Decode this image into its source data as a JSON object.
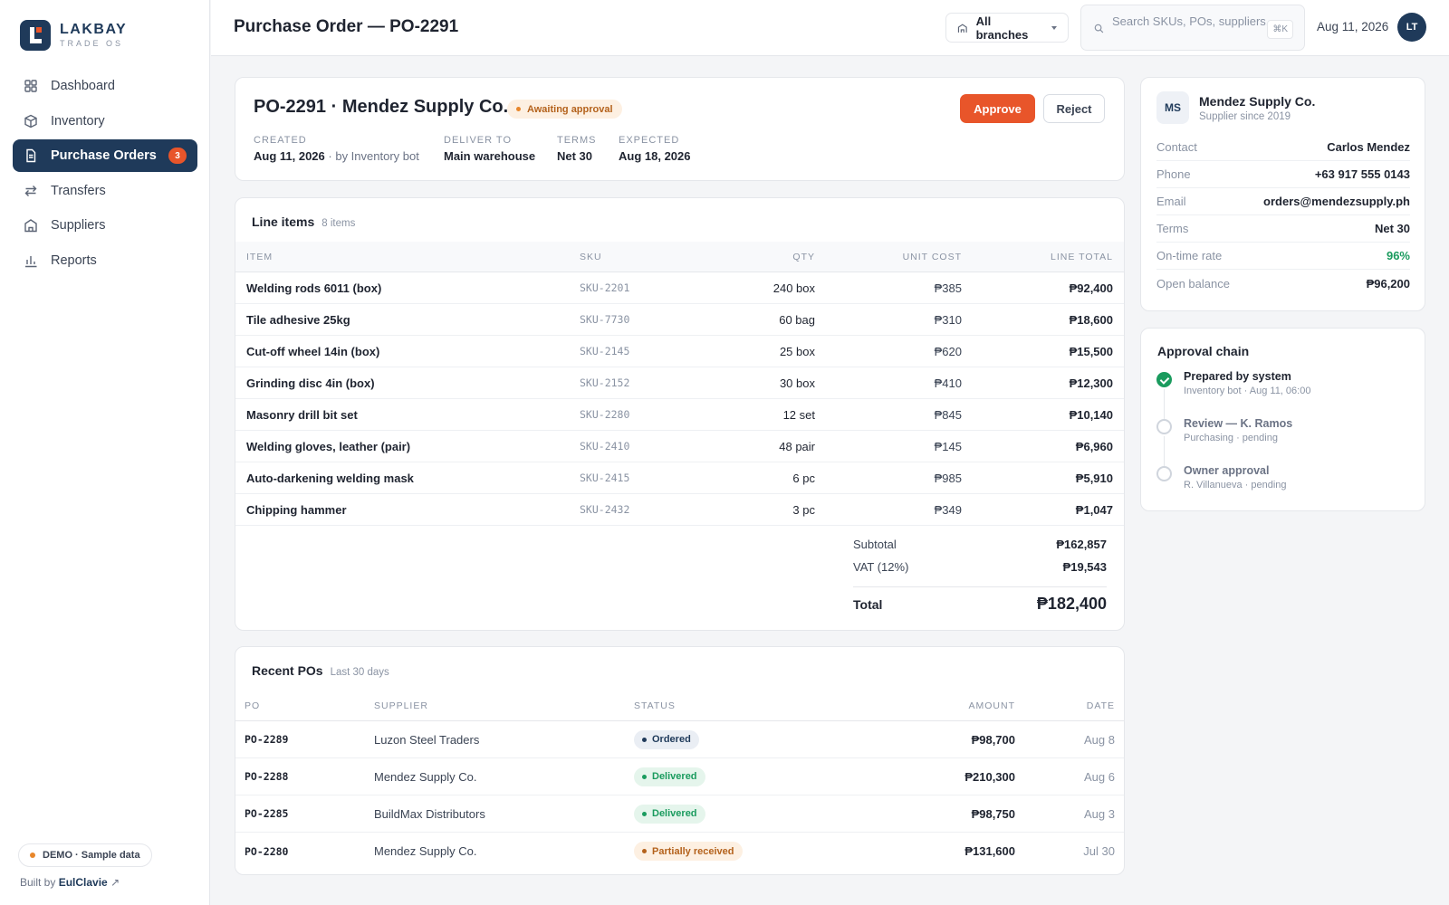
{
  "brand": {
    "name": "LAKBAY",
    "sub": "TRADE OS"
  },
  "nav": [
    {
      "label": "Dashboard",
      "icon": "grid-icon"
    },
    {
      "label": "Inventory",
      "icon": "box-icon"
    },
    {
      "label": "Purchase Orders",
      "icon": "document-icon",
      "badge": "3",
      "active": true
    },
    {
      "label": "Transfers",
      "icon": "arrows-icon"
    },
    {
      "label": "Suppliers",
      "icon": "building-icon"
    },
    {
      "label": "Reports",
      "icon": "bar-chart-icon"
    }
  ],
  "footer": {
    "demo": "DEMO · Sample data",
    "built_prefix": "Built by",
    "built_name": "EulClavie",
    "built_arrow": "↗"
  },
  "topbar": {
    "title": "Purchase Order — PO-2291",
    "branch": "All branches",
    "search_placeholder": "Search SKUs, POs, suppliers...",
    "search_kbd": "⌘K",
    "date": "Aug 11, 2026",
    "avatar": "LT"
  },
  "po": {
    "title": "PO-2291 · Mendez Supply Co.",
    "status": "Awaiting approval",
    "approve": "Approve",
    "reject": "Reject",
    "meta": {
      "created_label": "CREATED",
      "created_value": "Aug 11, 2026",
      "created_by": " · by Inventory bot",
      "deliver_label": "DELIVER TO",
      "deliver_value": "Main warehouse",
      "terms_label": "TERMS",
      "terms_value": "Net 30",
      "expected_label": "EXPECTED",
      "expected_value": "Aug 18, 2026"
    }
  },
  "line_items": {
    "title": "Line items",
    "count": "8 items",
    "headers": {
      "item": "ITEM",
      "sku": "SKU",
      "qty": "QTY",
      "unit": "UNIT COST",
      "total": "LINE TOTAL"
    },
    "rows": [
      {
        "item": "Welding rods 6011 (box)",
        "sku": "SKU-2201",
        "qty": "240 box",
        "unit": "₱385",
        "total": "₱92,400"
      },
      {
        "item": "Tile adhesive 25kg",
        "sku": "SKU-7730",
        "qty": "60 bag",
        "unit": "₱310",
        "total": "₱18,600"
      },
      {
        "item": "Cut-off wheel 14in (box)",
        "sku": "SKU-2145",
        "qty": "25 box",
        "unit": "₱620",
        "total": "₱15,500"
      },
      {
        "item": "Grinding disc 4in (box)",
        "sku": "SKU-2152",
        "qty": "30 box",
        "unit": "₱410",
        "total": "₱12,300"
      },
      {
        "item": "Masonry drill bit set",
        "sku": "SKU-2280",
        "qty": "12 set",
        "unit": "₱845",
        "total": "₱10,140"
      },
      {
        "item": "Welding gloves, leather (pair)",
        "sku": "SKU-2410",
        "qty": "48 pair",
        "unit": "₱145",
        "total": "₱6,960"
      },
      {
        "item": "Auto-darkening welding mask",
        "sku": "SKU-2415",
        "qty": "6 pc",
        "unit": "₱985",
        "total": "₱5,910"
      },
      {
        "item": "Chipping hammer",
        "sku": "SKU-2432",
        "qty": "3 pc",
        "unit": "₱349",
        "total": "₱1,047"
      }
    ],
    "totals": {
      "subtotal_label": "Subtotal",
      "subtotal": "₱162,857",
      "vat_label": "VAT (12%)",
      "vat": "₱19,543",
      "total_label": "Total",
      "total": "₱182,400"
    }
  },
  "recent": {
    "title": "Recent POs",
    "range": "Last 30 days",
    "headers": {
      "po": "PO",
      "supplier": "SUPPLIER",
      "status": "STATUS",
      "amount": "AMOUNT",
      "date": "DATE"
    },
    "rows": [
      {
        "po": "PO-2289",
        "supplier": "Luzon Steel Traders",
        "status": "Ordered",
        "amount": "₱98,700",
        "date": "Aug 8",
        "color": "#1f3a5a",
        "bg": "#eaeef4"
      },
      {
        "po": "PO-2288",
        "supplier": "Mendez Supply Co.",
        "status": "Delivered",
        "amount": "₱210,300",
        "date": "Aug 6",
        "color": "#1a9b5e",
        "bg": "#e5f5ec"
      },
      {
        "po": "PO-2285",
        "supplier": "BuildMax Distributors",
        "status": "Delivered",
        "amount": "₱98,750",
        "date": "Aug 3",
        "color": "#1a9b5e",
        "bg": "#e5f5ec"
      },
      {
        "po": "PO-2280",
        "supplier": "Mendez Supply Co.",
        "status": "Partially received",
        "amount": "₱131,600",
        "date": "Jul 30",
        "color": "#b4621c",
        "bg": "#fdf0e2"
      }
    ]
  },
  "supplier": {
    "initials": "MS",
    "name": "Mendez Supply Co.",
    "since": "Supplier since 2019",
    "rows": [
      {
        "k": "Contact",
        "v": "Carlos Mendez"
      },
      {
        "k": "Phone",
        "v": "+63 917 555 0143"
      },
      {
        "k": "Email",
        "v": "orders@mendezsupply.ph"
      },
      {
        "k": "Terms",
        "v": "Net 30"
      },
      {
        "k": "On-time rate",
        "v": "96%",
        "green": true
      },
      {
        "k": "Open balance",
        "v": "₱96,200"
      }
    ]
  },
  "approval": {
    "title": "Approval chain",
    "steps": [
      {
        "title": "Prepared by system",
        "sub": "Inventory bot · Aug 11, 06:00",
        "done": true
      },
      {
        "title": "Review — K. Ramos",
        "sub": "Purchasing · pending",
        "done": false
      },
      {
        "title": "Owner approval",
        "sub": "R. Villanueva · pending",
        "done": false
      }
    ]
  },
  "colors": {
    "brand": "#1f3a5a",
    "accent": "#e8552a",
    "success": "#1a9b5e",
    "warning": "#e8862a"
  }
}
